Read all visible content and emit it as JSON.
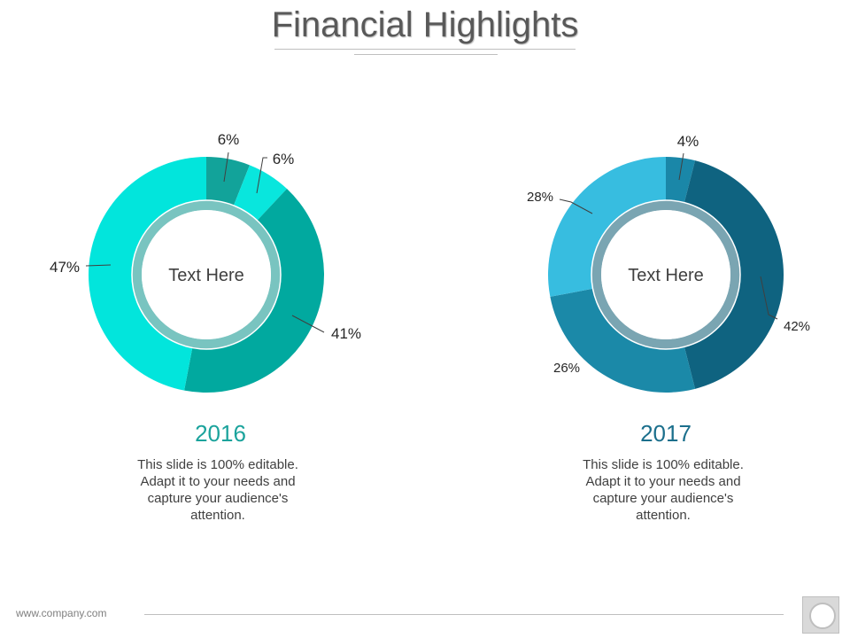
{
  "slide": {
    "title": "Financial Highlights",
    "footer_url": "www.company.com"
  },
  "chart_data": [
    {
      "type": "pie",
      "title": "2016",
      "center_label": "Text Here",
      "description": "This slide is 100% editable. Adapt it to your needs and capture your audience's attention.",
      "values": [
        6,
        6,
        41,
        47
      ],
      "labels": [
        "6%",
        "6%",
        "41%",
        "47%"
      ],
      "colors": [
        "#12a39a",
        "#09e6dd",
        "#01a99f",
        "#02e5dc"
      ],
      "inner_ring_color": "#0b948c",
      "year_color": "#1ba39c"
    },
    {
      "type": "pie",
      "title": "2017",
      "center_label": "Text Here",
      "description": "This slide is 100% editable. Adapt it to your needs and capture your audience's attention.",
      "values": [
        4,
        42,
        26,
        28
      ],
      "labels": [
        "4%",
        "42%",
        "26%",
        "28%"
      ],
      "colors": [
        "#1a87a8",
        "#0f6380",
        "#1b89a8",
        "#37bde0"
      ],
      "inner_ring_color": "#0d5b73",
      "year_color": "#1b6f8c"
    }
  ]
}
